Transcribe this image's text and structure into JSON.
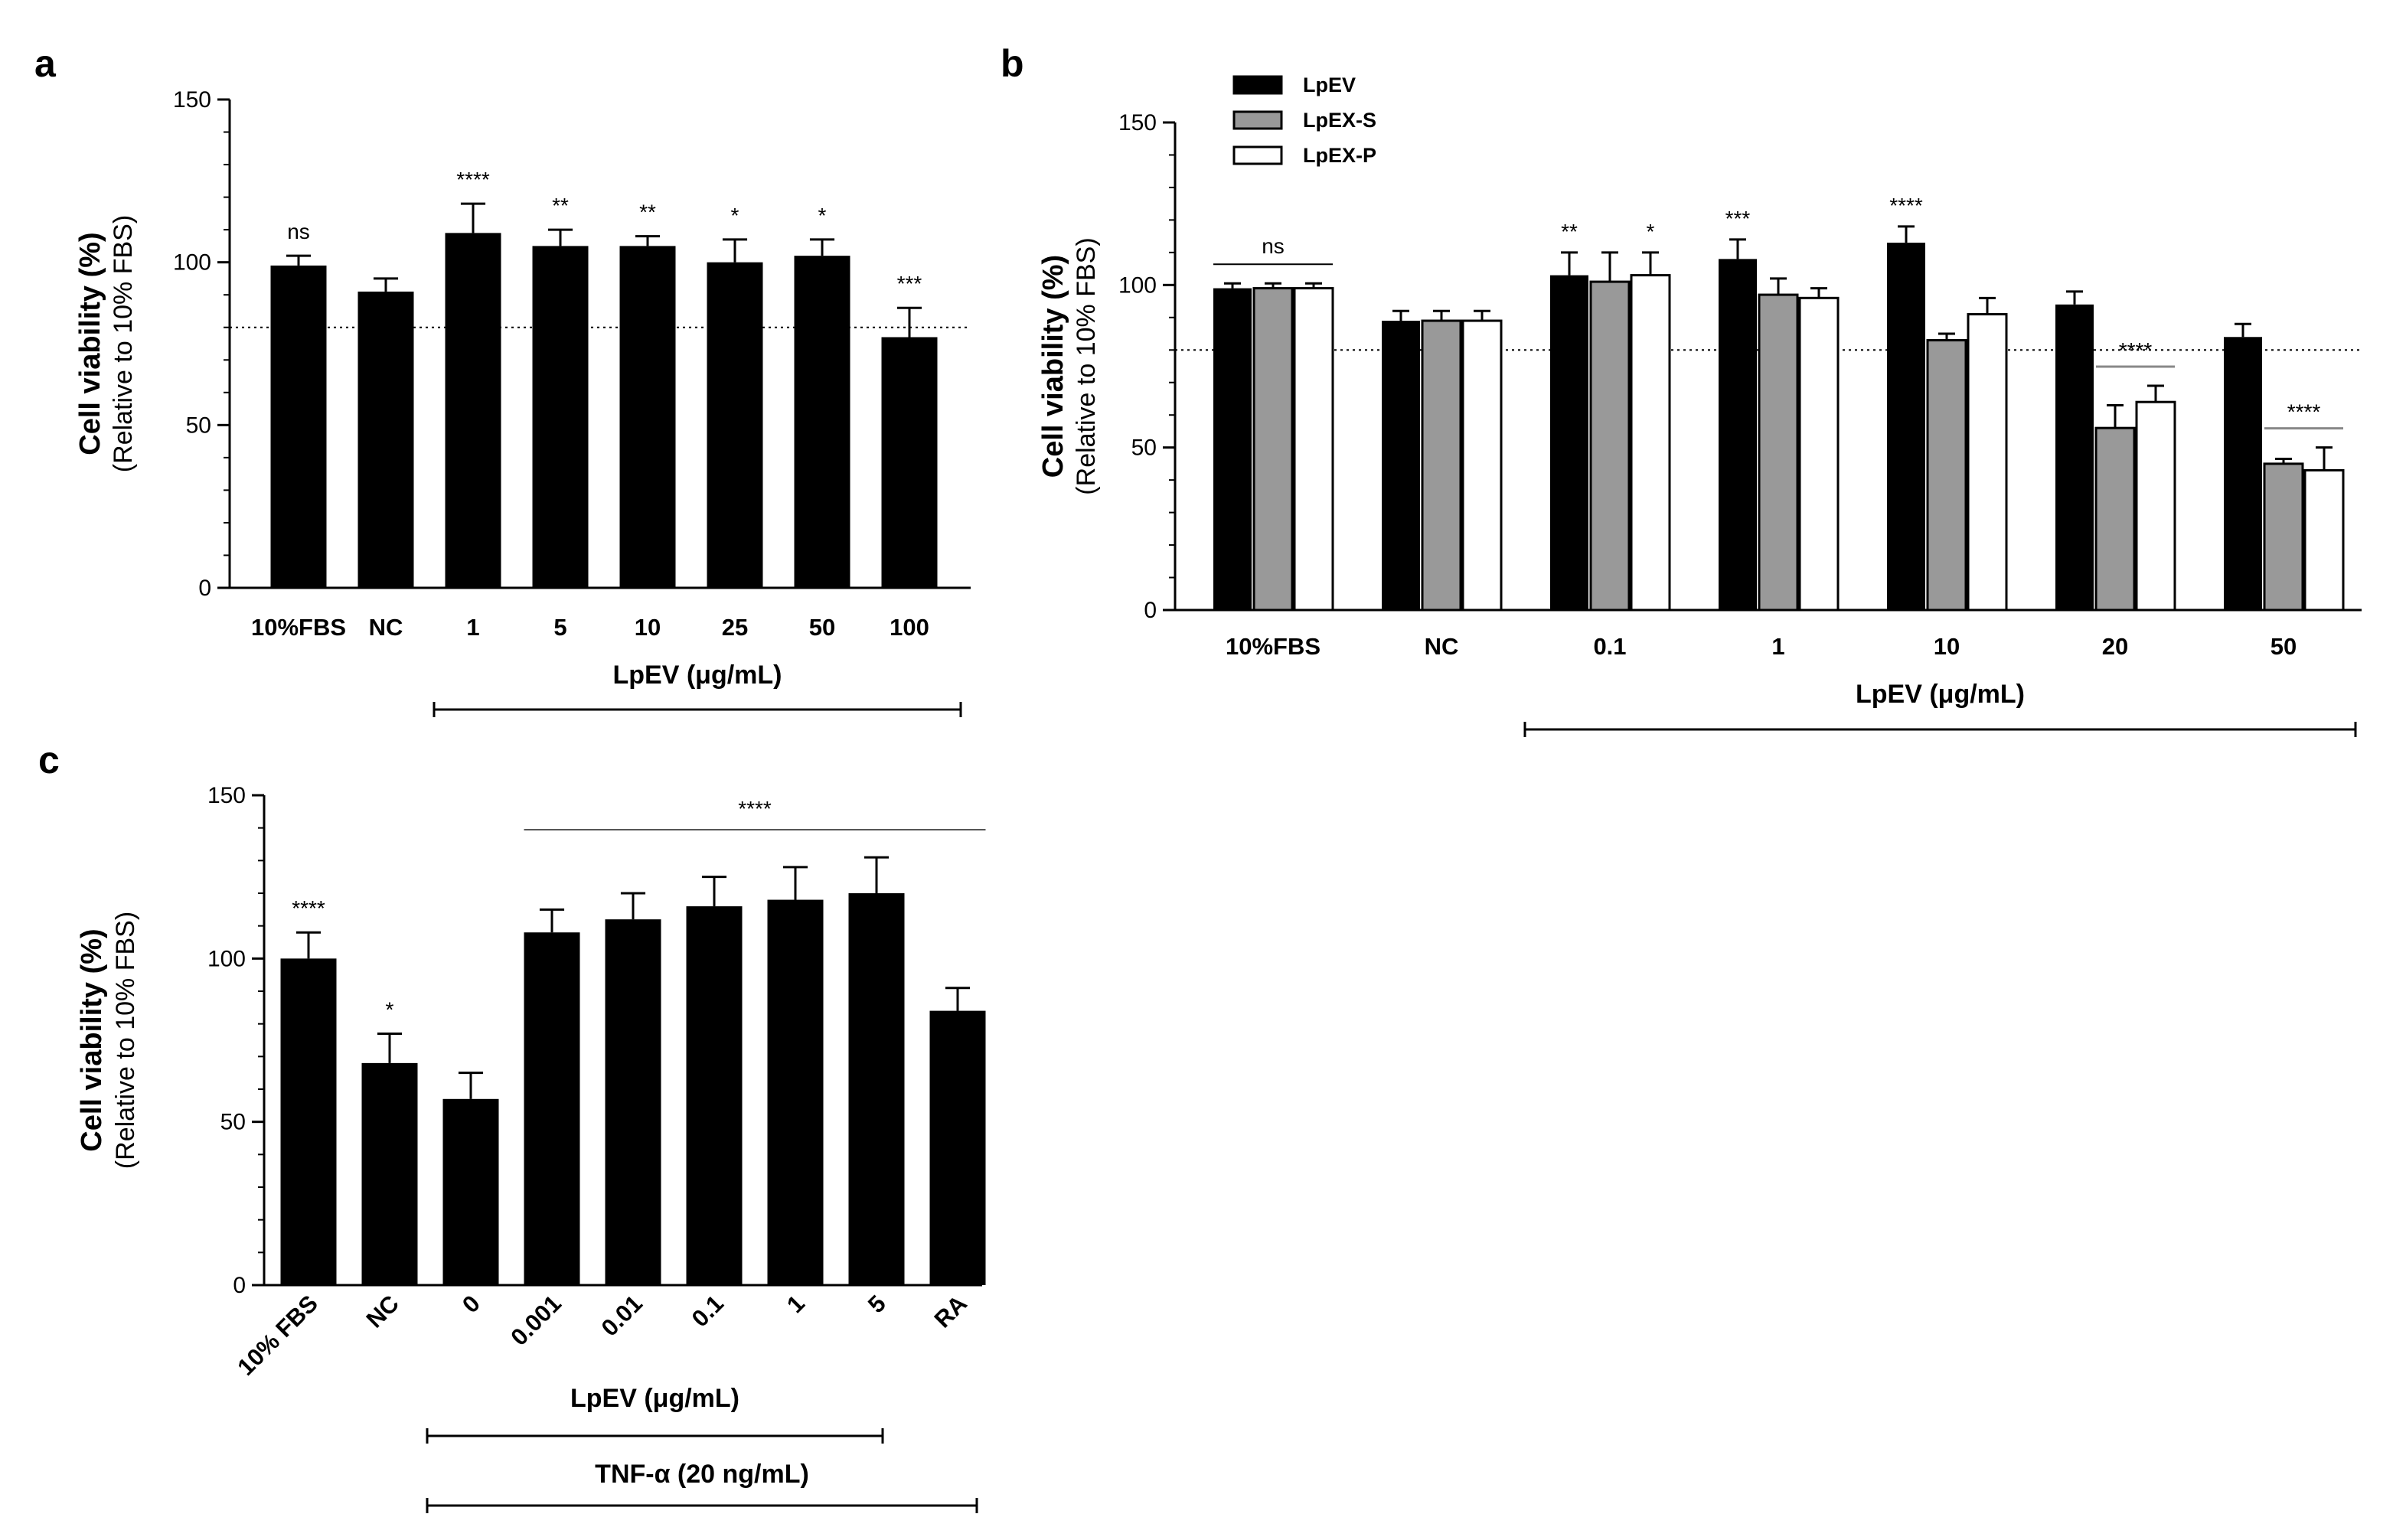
{
  "chart_data": [
    {
      "id": "a",
      "panel_label": "a",
      "type": "bar",
      "title": "",
      "ylabel": "Cell viability (%)",
      "ylabel_sub": "(Relative to 10% FBS)",
      "ylim": [
        0,
        150
      ],
      "yticks": [
        "0",
        "50",
        "100",
        "150"
      ],
      "reference_line": 80,
      "categories": [
        "10%FBS",
        "NC",
        "1",
        "5",
        "10",
        "25",
        "50",
        "100"
      ],
      "series": [
        {
          "name": "LpEV",
          "color": "#000000",
          "values": [
            99,
            91,
            109,
            105,
            105,
            100,
            102,
            77
          ],
          "errors": [
            3,
            4,
            9,
            5,
            3,
            7,
            5,
            9
          ]
        }
      ],
      "annotations": [
        "ns",
        "",
        "****",
        "**",
        "**",
        "*",
        "*",
        "***"
      ],
      "group_label": "LpEV (μg/mL)",
      "group_span": [
        2,
        7
      ]
    },
    {
      "id": "b",
      "panel_label": "b",
      "type": "bar",
      "title": "",
      "ylabel": "Cell viability (%)",
      "ylabel_sub": "(Relative to 10% FBS)",
      "ylim": [
        0,
        150
      ],
      "yticks": [
        "0",
        "50",
        "100",
        "150"
      ],
      "reference_line": 80,
      "categories": [
        "10%FBS",
        "NC",
        "0.1",
        "1",
        "10",
        "20",
        "50"
      ],
      "series": [
        {
          "name": "LpEV",
          "color": "#000000",
          "values": [
            99,
            89,
            103,
            108,
            113,
            94,
            84
          ],
          "errors": [
            1.5,
            3,
            7,
            6,
            5,
            4,
            4
          ]
        },
        {
          "name": "LpEX-S",
          "color": "#999999",
          "values": [
            99,
            89,
            101,
            97,
            83,
            56,
            45
          ],
          "errors": [
            1.5,
            3,
            9,
            5,
            2,
            7,
            1.5
          ]
        },
        {
          "name": "LpEX-P",
          "color": "#ffffff",
          "values": [
            99,
            89,
            103,
            96,
            91,
            64,
            43
          ],
          "errors": [
            1.5,
            3,
            7,
            3,
            5,
            5,
            7
          ]
        }
      ],
      "annotations": [
        {
          "text": "ns",
          "category": 0,
          "series": "all"
        },
        {
          "text": "**",
          "category": 2,
          "series": 0
        },
        {
          "text": "*",
          "category": 2,
          "series": 2
        },
        {
          "text": "***",
          "category": 3,
          "series": 0
        },
        {
          "text": "****",
          "category": 4,
          "series": 0
        },
        {
          "text": "****",
          "category": 5,
          "series": [
            1,
            2
          ]
        },
        {
          "text": "****",
          "category": 6,
          "series": [
            1,
            2
          ]
        }
      ],
      "legend": [
        "LpEV",
        "LpEX-S",
        "LpEX-P"
      ],
      "legend_position": "top-left",
      "group_label": "LpEV (μg/mL)",
      "group_span": [
        2,
        6
      ]
    },
    {
      "id": "c",
      "panel_label": "c",
      "type": "bar",
      "title": "",
      "ylabel": "Cell viability (%)",
      "ylabel_sub": "(Relative to 10% FBS)",
      "ylim": [
        0,
        150
      ],
      "yticks": [
        "0",
        "50",
        "100",
        "150"
      ],
      "categories": [
        "10% FBS",
        "NC",
        "0",
        "0.001",
        "0.01",
        "0.1",
        "1",
        "5",
        "RA"
      ],
      "series": [
        {
          "name": "LpEV",
          "color": "#000000",
          "values": [
            100,
            68,
            57,
            108,
            112,
            116,
            118,
            120,
            84
          ],
          "errors": [
            8,
            9,
            8,
            7,
            8,
            9,
            10,
            11,
            7
          ]
        }
      ],
      "annotations": [
        "****",
        "*",
        "",
        "",
        "",
        "",
        "",
        "",
        ""
      ],
      "span_annotation": {
        "text": "****",
        "from": 3,
        "to": 8
      },
      "group_label": "LpEV (μg/mL)",
      "group_span": [
        2,
        7
      ],
      "group_label_2": "TNF-α (20 ng/mL)",
      "group_span_2": [
        2,
        8
      ]
    }
  ]
}
